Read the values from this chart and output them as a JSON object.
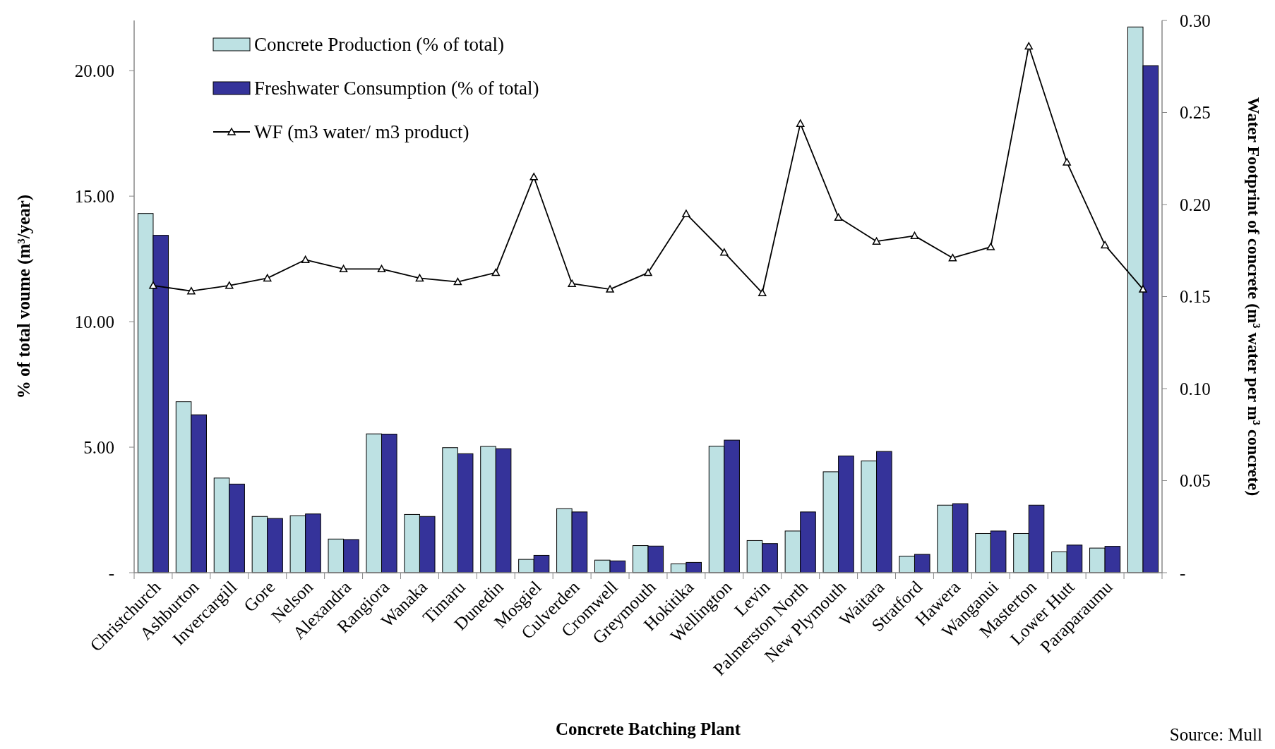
{
  "chart_data": {
    "type": "bar",
    "xlabel": "Concrete Batching Plant",
    "ylabel": "% of total voume (m³/year)",
    "y2label": "Water Footprint of concrete (m³ water per m³ concrete)",
    "categories": [
      "Christchurch",
      "Ashburton",
      "Invercargill",
      "Gore",
      "Nelson",
      "Alexandra",
      "Rangiora",
      "Wanaka",
      "Timaru",
      "Dunedin",
      "Mosgiel",
      "Culverden",
      "Cromwell",
      "Greymouth",
      "Hokitika",
      "Wellington",
      "Levin",
      "Palmerston North",
      "New Plymouth",
      "Waitara",
      "Stratford",
      "Hawera",
      "Wanganui",
      "Masterton",
      "Lower Hutt",
      "Paraparaumu",
      null
    ],
    "series": [
      {
        "name": "Concrete Production (% of total)",
        "color": "#bde1e3",
        "values": [
          14.31,
          6.81,
          3.77,
          2.24,
          2.27,
          1.34,
          5.53,
          2.32,
          4.98,
          5.03,
          0.53,
          2.55,
          0.5,
          1.08,
          0.35,
          5.04,
          1.28,
          1.66,
          4.02,
          4.45,
          0.66,
          2.69,
          1.56,
          1.56,
          0.83,
          0.98,
          21.74
        ]
      },
      {
        "name": "Freshwater Consumption (% of total)",
        "color": "#35339a",
        "values": [
          13.44,
          6.29,
          3.53,
          2.16,
          2.34,
          1.32,
          5.52,
          2.24,
          4.74,
          4.94,
          0.69,
          2.42,
          0.47,
          1.06,
          0.41,
          5.28,
          1.16,
          2.42,
          4.65,
          4.83,
          0.73,
          2.75,
          1.66,
          2.69,
          1.1,
          1.05,
          20.2
        ]
      },
      {
        "name": "WF (m3 water/ m3 product)",
        "type": "line",
        "axis": "y2",
        "color": "#000000",
        "values": [
          0.156,
          0.153,
          0.156,
          0.16,
          0.17,
          0.165,
          0.165,
          0.16,
          0.158,
          0.163,
          0.215,
          0.157,
          0.154,
          0.163,
          0.195,
          0.174,
          0.152,
          0.244,
          0.193,
          0.18,
          0.183,
          0.171,
          0.177,
          0.286,
          0.223,
          0.178,
          0.154
        ]
      }
    ],
    "ylim": [
      0,
      22
    ],
    "yticks": [
      {
        "value": 0,
        "label": "-"
      },
      {
        "value": 5,
        "label": "5.00"
      },
      {
        "value": 10,
        "label": "10.00"
      },
      {
        "value": 15,
        "label": "15.00"
      },
      {
        "value": 20,
        "label": "20.00"
      }
    ],
    "y2lim": [
      0,
      0.3
    ],
    "y2ticks": [
      {
        "value": 0,
        "label": "-"
      },
      {
        "value": 0.05,
        "label": "0.05"
      },
      {
        "value": 0.1,
        "label": "0.10"
      },
      {
        "value": 0.15,
        "label": "0.15"
      },
      {
        "value": 0.2,
        "label": "0.20"
      },
      {
        "value": 0.25,
        "label": "0.25"
      },
      {
        "value": 0.3,
        "label": "0.30"
      }
    ],
    "legend": "top left",
    "marker": "triangle",
    "annotations": [
      "Source: Mull"
    ]
  }
}
